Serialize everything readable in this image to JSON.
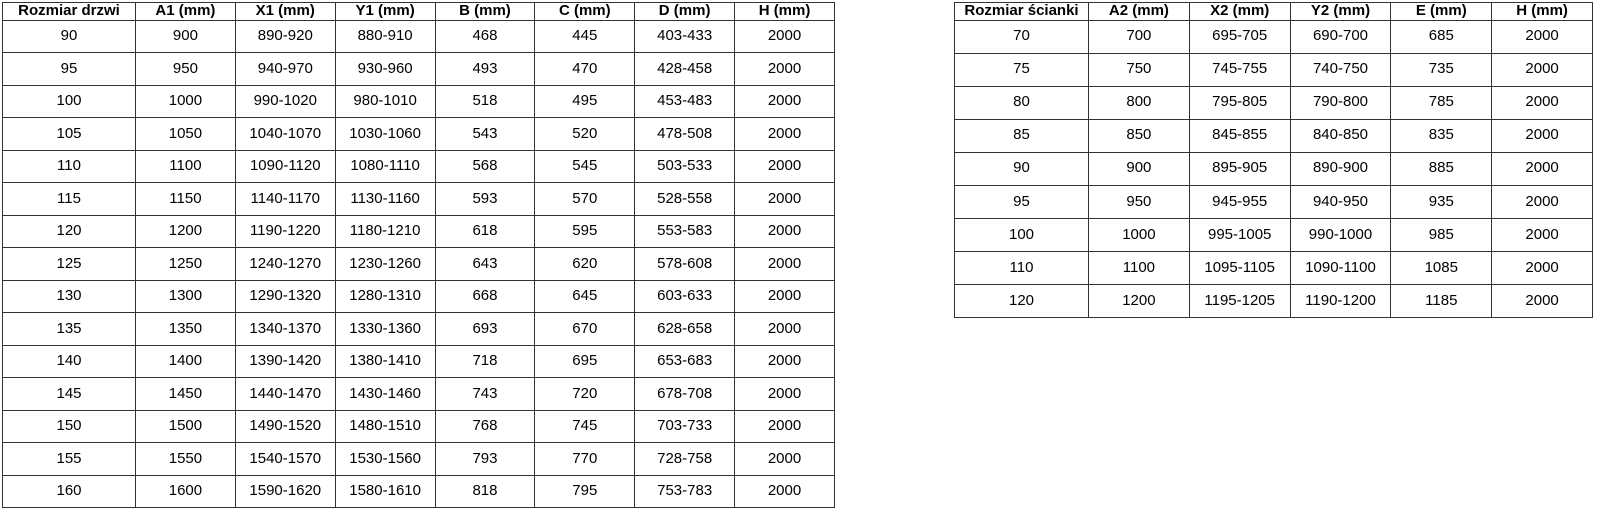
{
  "tables": [
    {
      "name": "door-sizes-table",
      "headers": [
        "Rozmiar drzwi",
        "A1 (mm)",
        "X1 (mm)",
        "Y1 (mm)",
        "B (mm)",
        "C (mm)",
        "D (mm)",
        "H (mm)"
      ],
      "rows": [
        [
          "90",
          "900",
          "890-920",
          "880-910",
          "468",
          "445",
          "403-433",
          "2000"
        ],
        [
          "95",
          "950",
          "940-970",
          "930-960",
          "493",
          "470",
          "428-458",
          "2000"
        ],
        [
          "100",
          "1000",
          "990-1020",
          "980-1010",
          "518",
          "495",
          "453-483",
          "2000"
        ],
        [
          "105",
          "1050",
          "1040-1070",
          "1030-1060",
          "543",
          "520",
          "478-508",
          "2000"
        ],
        [
          "110",
          "1100",
          "1090-1120",
          "1080-1110",
          "568",
          "545",
          "503-533",
          "2000"
        ],
        [
          "115",
          "1150",
          "1140-1170",
          "1130-1160",
          "593",
          "570",
          "528-558",
          "2000"
        ],
        [
          "120",
          "1200",
          "1190-1220",
          "1180-1210",
          "618",
          "595",
          "553-583",
          "2000"
        ],
        [
          "125",
          "1250",
          "1240-1270",
          "1230-1260",
          "643",
          "620",
          "578-608",
          "2000"
        ],
        [
          "130",
          "1300",
          "1290-1320",
          "1280-1310",
          "668",
          "645",
          "603-633",
          "2000"
        ],
        [
          "135",
          "1350",
          "1340-1370",
          "1330-1360",
          "693",
          "670",
          "628-658",
          "2000"
        ],
        [
          "140",
          "1400",
          "1390-1420",
          "1380-1410",
          "718",
          "695",
          "653-683",
          "2000"
        ],
        [
          "145",
          "1450",
          "1440-1470",
          "1430-1460",
          "743",
          "720",
          "678-708",
          "2000"
        ],
        [
          "150",
          "1500",
          "1490-1520",
          "1480-1510",
          "768",
          "745",
          "703-733",
          "2000"
        ],
        [
          "155",
          "1550",
          "1540-1570",
          "1530-1560",
          "793",
          "770",
          "728-758",
          "2000"
        ],
        [
          "160",
          "1600",
          "1590-1620",
          "1580-1610",
          "818",
          "795",
          "753-783",
          "2000"
        ]
      ]
    },
    {
      "name": "wall-sizes-table",
      "headers": [
        "Rozmiar ścianki",
        "A2 (mm)",
        "X2 (mm)",
        "Y2 (mm)",
        "E (mm)",
        "H (mm)"
      ],
      "rows": [
        [
          "70",
          "700",
          "695-705",
          "690-700",
          "685",
          "2000"
        ],
        [
          "75",
          "750",
          "745-755",
          "740-750",
          "735",
          "2000"
        ],
        [
          "80",
          "800",
          "795-805",
          "790-800",
          "785",
          "2000"
        ],
        [
          "85",
          "850",
          "845-855",
          "840-850",
          "835",
          "2000"
        ],
        [
          "90",
          "900",
          "895-905",
          "890-900",
          "885",
          "2000"
        ],
        [
          "95",
          "950",
          "945-955",
          "940-950",
          "935",
          "2000"
        ],
        [
          "100",
          "1000",
          "995-1005",
          "990-1000",
          "985",
          "2000"
        ],
        [
          "110",
          "1100",
          "1095-1105",
          "1090-1100",
          "1085",
          "2000"
        ],
        [
          "120",
          "1200",
          "1195-1205",
          "1190-1200",
          "1185",
          "2000"
        ]
      ]
    }
  ],
  "colors": {
    "border": "#333333",
    "text": "#000000",
    "background": "#ffffff"
  }
}
